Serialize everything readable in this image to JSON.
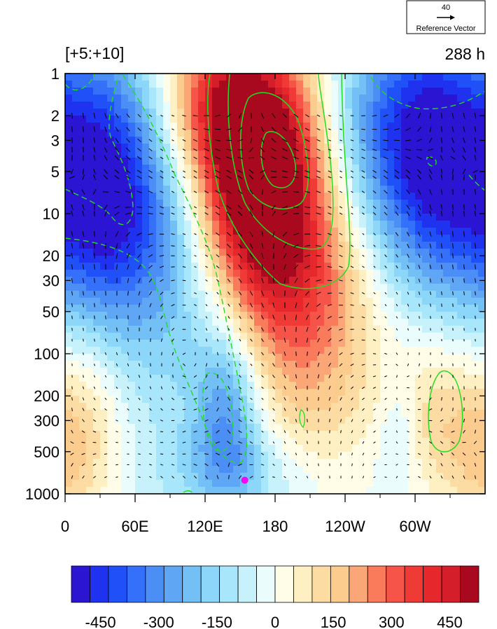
{
  "chart_data": {
    "type": "heatmap",
    "title_left": "[+5:+10]",
    "title_right": "288 h",
    "xlabel": "",
    "ylabel": "",
    "x_ticks": [
      {
        "lon": 0,
        "label": "0"
      },
      {
        "lon": 60,
        "label": "60E"
      },
      {
        "lon": 120,
        "label": "120E"
      },
      {
        "lon": 180,
        "label": "180"
      },
      {
        "lon": 240,
        "label": "120W"
      },
      {
        "lon": 300,
        "label": "60W"
      }
    ],
    "xlim": [
      0,
      360
    ],
    "y_ticks": [
      {
        "p": 1,
        "label": "1"
      },
      {
        "p": 2,
        "label": "2"
      },
      {
        "p": 3,
        "label": "3"
      },
      {
        "p": 5,
        "label": "5"
      },
      {
        "p": 10,
        "label": "10"
      },
      {
        "p": 20,
        "label": "20"
      },
      {
        "p": 30,
        "label": "30"
      },
      {
        "p": 50,
        "label": "50"
      },
      {
        "p": 100,
        "label": "100"
      },
      {
        "p": 200,
        "label": "200"
      },
      {
        "p": 300,
        "label": "300"
      },
      {
        "p": 500,
        "label": "500"
      },
      {
        "p": 1000,
        "label": "1000"
      }
    ],
    "ylim": [
      1000,
      1
    ],
    "y_scale": "log",
    "reference_vector": {
      "value": "40",
      "label": "Reference Vector"
    },
    "colorbar": {
      "levels": [
        -525,
        -475,
        -425,
        -375,
        -325,
        -275,
        -225,
        -175,
        -125,
        -75,
        -25,
        25,
        75,
        125,
        175,
        225,
        275,
        325,
        375,
        425,
        475,
        525
      ],
      "colors": [
        "#2b14d2",
        "#1f32f0",
        "#2050f8",
        "#3570fa",
        "#4a8ef6",
        "#5fa6f4",
        "#72c0f6",
        "#8cd6fa",
        "#a8e6fb",
        "#c8f2fb",
        "#eafcfc",
        "#fffde8",
        "#fff0c4",
        "#fddca4",
        "#fccb8e",
        "#fba676",
        "#fa7a5c",
        "#f65448",
        "#f03a36",
        "#e6282c",
        "#d41f2a",
        "#a8091e"
      ],
      "labels": [
        {
          "value": -450,
          "label": "-450"
        },
        {
          "value": -300,
          "label": "-300"
        },
        {
          "value": -150,
          "label": "-150"
        },
        {
          "value": 0,
          "label": "0"
        },
        {
          "value": 150,
          "label": "150"
        },
        {
          "value": 300,
          "label": "300"
        },
        {
          "value": 450,
          "label": "450"
        }
      ]
    },
    "field_features": [
      {
        "lon": 165,
        "p": 4,
        "value": 520,
        "sx": 32,
        "sy": 0.55
      },
      {
        "lon": 170,
        "p": 8,
        "value": 330,
        "sx": 50,
        "sy": 0.75
      },
      {
        "lon": 200,
        "p": 30,
        "value": 190,
        "sx": 40,
        "sy": 0.5
      },
      {
        "lon": 125,
        "p": 1.5,
        "value": 250,
        "sx": 30,
        "sy": 0.4
      },
      {
        "lon": 320,
        "p": 4,
        "value": -420,
        "sx": 36,
        "sy": 0.7
      },
      {
        "lon": 270,
        "p": 2.5,
        "value": -250,
        "sx": 40,
        "sy": 0.6
      },
      {
        "lon": 30,
        "p": 5,
        "value": -360,
        "sx": 35,
        "sy": 0.7
      },
      {
        "lon": 60,
        "p": 12,
        "value": -230,
        "sx": 50,
        "sy": 0.6
      },
      {
        "lon": 100,
        "p": 60,
        "value": -110,
        "sx": 35,
        "sy": 0.8
      },
      {
        "lon": 140,
        "p": 250,
        "value": -260,
        "sx": 20,
        "sy": 0.45
      },
      {
        "lon": 150,
        "p": 700,
        "value": -130,
        "sx": 45,
        "sy": 0.25
      },
      {
        "lon": 285,
        "p": 400,
        "value": -90,
        "sx": 12,
        "sy": 0.3
      },
      {
        "lon": 320,
        "p": 250,
        "value": 150,
        "sx": 25,
        "sy": 0.45
      },
      {
        "lon": 15,
        "p": 300,
        "value": 150,
        "sx": 25,
        "sy": 0.5
      },
      {
        "lon": 230,
        "p": 120,
        "value": 100,
        "sx": 40,
        "sy": 0.5
      },
      {
        "lon": 200,
        "p": 400,
        "value": 60,
        "sx": 40,
        "sy": 0.4
      },
      {
        "lon": 355,
        "p": 600,
        "value": 90,
        "sx": 20,
        "sy": 0.3
      }
    ],
    "contour_overlay": {
      "solid": "positive",
      "dashed": "negative",
      "color": "#22dd22"
    },
    "marker": {
      "lon": 154,
      "p": 800,
      "color": "#ff00ff"
    }
  }
}
